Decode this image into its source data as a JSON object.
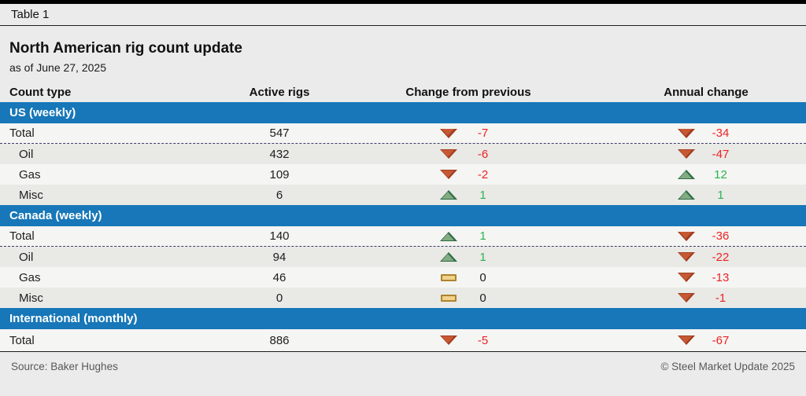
{
  "meta": {
    "tag": "Table 1"
  },
  "header": {
    "title": "North American rig count update",
    "subtitle": "as of June 27, 2025"
  },
  "columns": {
    "count_type": "Count type",
    "active_rigs": "Active rigs",
    "change_prev": "Change from previous",
    "annual": "Annual change"
  },
  "colors": {
    "section_blue": "#1777b8",
    "down_triangle": "#c65934",
    "up_triangle": "#82ab81",
    "flat_bar": "#f0d28a",
    "negative_text": "#ee2224",
    "positive_text": "#2ab34f"
  },
  "sections": [
    {
      "header": "US (weekly)",
      "rows": [
        {
          "label": "Total",
          "active": "547",
          "prev": {
            "dir": "down",
            "value": "-7",
            "sign": "neg"
          },
          "annual": {
            "dir": "down",
            "value": "-34",
            "sign": "neg"
          }
        },
        {
          "label": "Oil",
          "active": "432",
          "prev": {
            "dir": "down",
            "value": "-6",
            "sign": "neg"
          },
          "annual": {
            "dir": "down",
            "value": "-47",
            "sign": "neg"
          }
        },
        {
          "label": "Gas",
          "active": "109",
          "prev": {
            "dir": "down",
            "value": "-2",
            "sign": "neg"
          },
          "annual": {
            "dir": "up",
            "value": "12",
            "sign": "pos"
          }
        },
        {
          "label": "Misc",
          "active": "6",
          "prev": {
            "dir": "up",
            "value": "1",
            "sign": "pos"
          },
          "annual": {
            "dir": "up",
            "value": "1",
            "sign": "pos"
          }
        }
      ]
    },
    {
      "header": "Canada (weekly)",
      "rows": [
        {
          "label": "Total",
          "active": "140",
          "prev": {
            "dir": "up",
            "value": "1",
            "sign": "pos"
          },
          "annual": {
            "dir": "down",
            "value": "-36",
            "sign": "neg"
          }
        },
        {
          "label": "Oil",
          "active": "94",
          "prev": {
            "dir": "up",
            "value": "1",
            "sign": "pos"
          },
          "annual": {
            "dir": "down",
            "value": "-22",
            "sign": "neg"
          }
        },
        {
          "label": "Gas",
          "active": "46",
          "prev": {
            "dir": "flat",
            "value": "0",
            "sign": "zero"
          },
          "annual": {
            "dir": "down",
            "value": "-13",
            "sign": "neg"
          }
        },
        {
          "label": "Misc",
          "active": "0",
          "prev": {
            "dir": "flat",
            "value": "0",
            "sign": "zero"
          },
          "annual": {
            "dir": "down",
            "value": "-1",
            "sign": "neg"
          }
        }
      ]
    },
    {
      "header": "International (monthly)",
      "rows": [
        {
          "label": "Total",
          "active": "886",
          "prev": {
            "dir": "down",
            "value": "-5",
            "sign": "neg"
          },
          "annual": {
            "dir": "down",
            "value": "-67",
            "sign": "neg"
          }
        }
      ]
    }
  ],
  "footer": {
    "source": "Source: Baker Hughes",
    "copyright": "© Steel Market Update 2025"
  },
  "chart_data": {
    "type": "table",
    "title": "North American rig count update",
    "subtitle": "as of June 27, 2025",
    "columns": [
      "Count type",
      "Active rigs",
      "Change from previous",
      "Annual change"
    ],
    "sections": [
      {
        "name": "US (weekly)",
        "rows": [
          [
            "Total",
            547,
            -7,
            -34
          ],
          [
            "Oil",
            432,
            -6,
            -47
          ],
          [
            "Gas",
            109,
            -2,
            12
          ],
          [
            "Misc",
            6,
            1,
            1
          ]
        ]
      },
      {
        "name": "Canada (weekly)",
        "rows": [
          [
            "Total",
            140,
            1,
            -36
          ],
          [
            "Oil",
            94,
            1,
            -22
          ],
          [
            "Gas",
            46,
            0,
            -13
          ],
          [
            "Misc",
            0,
            0,
            -1
          ]
        ]
      },
      {
        "name": "International (monthly)",
        "rows": [
          [
            "Total",
            886,
            -5,
            -67
          ]
        ]
      }
    ],
    "source": "Baker Hughes"
  }
}
